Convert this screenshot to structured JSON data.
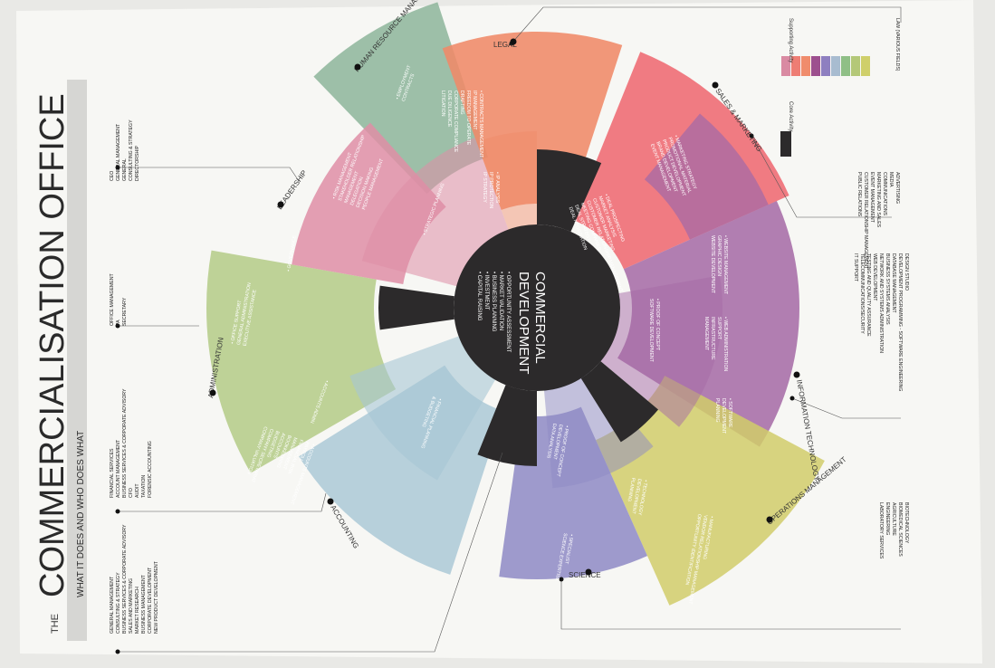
{
  "title": {
    "prefix": "THE",
    "main": "COMMERCIALISATION OFFICE",
    "subtitle": "WHAT IT DOES AND WHO DOES WHAT"
  },
  "legend": {
    "supporting_label": "Supporting Activity",
    "core_label": "Core Activity",
    "supporting_colors": [
      "#d98aa2",
      "#ee7d74",
      "#f08c6c",
      "#9d4f8e",
      "#8e7fc0",
      "#a8bcd0",
      "#8fbf86",
      "#b4c878",
      "#cfcf6a"
    ],
    "core_color": "#2c2a2b"
  },
  "center": {
    "title_line1": "COMMERCIAL",
    "title_line2": "DEVELOPMENT",
    "items": [
      "OPPORTUNITY ASSESSMENT",
      "MARKET VALIDATION",
      "BUSINESS PLANNING",
      "INVESTMENT",
      "CAPITAL RAISING"
    ]
  },
  "sectors": [
    {
      "key": "legal",
      "label": "LEGAL",
      "color": "#f08a68",
      "outer_items": [
        "CONTRACTS MANAGEMENT",
        "IP MANAGEMENT",
        "FREEDOM TO OPERATE",
        "DRAFTING",
        "CORPORATE COMPLIANCE",
        "DUE DILIGENCE",
        "LITIGATION"
      ],
      "inner_items": [
        "IP ANALYSIS",
        "IP PROTECTION",
        "IP STRATEGY"
      ]
    },
    {
      "key": "sales",
      "label": "SALES & MARKETING",
      "color": "#ef6a72",
      "outer_items": [
        "MARKETING STRATEGY",
        "PROMOTIONAL MATERIAL",
        "PRODUCT DEVELOPMENT",
        "BRAND DEVELOPMENT",
        "EVENT MANAGEMENT"
      ],
      "inner_items": [
        "DEAL PROSPECTING",
        "MARKET ANALYSIS",
        "CUSTOMER MARKETING",
        "CUSTOMER RELATIONSHIP MANAGEMENT",
        "MEETING COMPANIES",
        "DEAL STRATEGY",
        "DEAL NEGOTIATION"
      ]
    },
    {
      "key": "it",
      "label": "INFORMATION TECHNOLOGY",
      "color": "#a569a5",
      "outer_items": [
        "WEBSITE MANAGEMENT",
        "GRAPHIC DESIGN",
        "WEBSITE DEVELOPMENT"
      ],
      "outer_items2": [
        "WEB ADMINISTRATION",
        "SUPPORT",
        "INFRASTRUCTURE",
        "MANAGEMENT"
      ],
      "inner_items": [
        "PROOF OF CONCEPT",
        "SOFTWARE DEVELOPMENT"
      ],
      "inner_items2": [
        "SOFTWARE",
        "DEVELOPMENT",
        "PLANNING"
      ]
    },
    {
      "key": "ops",
      "label": "OPERATIONS MANAGEMENT",
      "color": "#d1cc6a",
      "outer_items": [
        "MANUFACTURING",
        "VENDOR RELATIONSHIP MANAGEMENT",
        "OPPORTUNITY IDENTIFICATION"
      ]
    },
    {
      "key": "science",
      "label": "SCIENCE",
      "color": "#8e89c4",
      "outer_items": [
        "SPECIALIST",
        "SCIENCE EXPERTISE"
      ],
      "inner_items": [
        "PROOF OF CONCEPT",
        "DEVELOPMENT",
        "DATA ANALYSIS"
      ],
      "mid_items": [
        "TECHNOLOGY",
        "DEVELOPMENT",
        "PLANNING"
      ]
    },
    {
      "key": "accounting",
      "label": "ACCOUNTING",
      "color": "#a6c6d4",
      "outer_items": [
        "ACCOUNTS MANAGEMENT",
        "PAYROLL",
        "FINANCIAL RISK",
        "MANAGEMENT",
        "BOOKKEEPING",
        "ACCOUNTS",
        "BUDGETING",
        "COMPANY SECRETARIAT",
        "COMPANY VALUATION"
      ],
      "inner_items": [
        "FINANCIAL PLANNING",
        "& BUDGETING"
      ],
      "mid_items": [
        "ACCOUNTS ADMIN"
      ]
    },
    {
      "key": "admin",
      "label": "ADMINISTRATION",
      "color": "#b4cb86",
      "outer_items": [
        "OFFICE SUPPORT",
        "GENERAL ADMINISTRATION",
        "EXECUTIVE ASSISTANCE"
      ],
      "mid_items": [
        "GOVERNANCE"
      ]
    },
    {
      "key": "leadership",
      "label": "LEADERSHIP",
      "color": "#df8ea6",
      "outer_items": [
        "RISK MANAGEMENT",
        "STAKEHOLDER RELATIONSHIP",
        "MANAGEMENT",
        "DELEGATION",
        "DECISION MAKING",
        "PEOPLE MANAGEMENT"
      ],
      "inner_items": [
        "STRATEGIC PLANNING"
      ]
    },
    {
      "key": "hr",
      "label": "HUMAN RESOURCE MANAGEMENT",
      "color": "#8db59a",
      "outer_items": [
        "EMPLOYMENT",
        "CONTRACTS"
      ]
    }
  ],
  "callouts": {
    "leadership_roles": [
      "CEO",
      "GENERAL MANAGEMENT",
      "GENERAL",
      "CONSULTING & STRATEGY",
      "DIRECTORSHIP"
    ],
    "admin_roles": [
      "OFFICE MANAGEMENT",
      "PA",
      "SECRETARY"
    ],
    "accounting_roles": [
      "FINANCIAL SERVICES",
      "ACCOUNT MANAGEMENT",
      "BUSINESS SERVICES & CORPORATE ADVISORY",
      "CFO",
      "AUDIT",
      "TAXATION",
      "FORENSIC ACCOUNTING"
    ],
    "core_roles": [
      "GENERAL MANAGEMENT",
      "CONSULTING & STRATEGY",
      "BUSINESS SERVICES & CORPORATE ADVISORY",
      "SALES AND MARKETING",
      "MARKET RESEARCH",
      "BUSINESS MANAGEMENT",
      "CORPORATE DEVELOPMENT",
      "NEW PRODUCT DEVELOPMENT"
    ],
    "legal_roles": [
      "LAW (VARIOUS FIELDS)"
    ],
    "sales_roles": [
      "ADVERTISING",
      "MEDIA",
      "COMMUNICATIONS",
      "MARKETING AND SALES",
      "EVENT MANAGEMENT",
      "CUSTOMER RELATIONSHIP MANAGEMENT",
      "PUBLIC RELATIONS"
    ],
    "it_roles": [
      "DESIGN STUDIO",
      "DEVELOPMENT PROGRAMMING - SOFTWARE ENGINEERING",
      "DATABASE MANAGEMENT",
      "BUSINESS SYSTEMS ANALYSIS",
      "NETWORK AND SYSTEMS ADMINISTRATION",
      "WEB DEVELOPMENT",
      "TESTING AND QUALITY ASSURANCE",
      "TELECOMMUNICATIONS/SECURITY",
      "IT SUPPORT"
    ],
    "science_roles": [
      "BIOTECHNOLOGY",
      "BIOMEDICAL SCIENCES",
      "AGRICULTURE",
      "ENGINEERING",
      "LABORATORY SERVICES"
    ]
  }
}
